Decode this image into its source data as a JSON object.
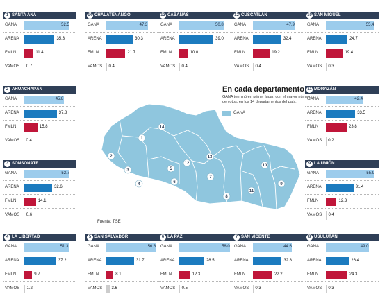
{
  "colors": {
    "GANA": "#9cccec",
    "ARENA": "#1c7bbf",
    "FMLN": "#c0163a",
    "VAMOS": "#cccccc",
    "header": "#2f3f57",
    "map": "#8fc6de"
  },
  "map": {
    "title": "En cada departamento",
    "subtitle": "GANA terminó en primer lugar, con el mayor número de votos, en los 14 departamentos del país.",
    "legend": "GANA",
    "source": "Fuente: TSE",
    "markers": [
      "1",
      "2",
      "3",
      "4",
      "5",
      "6",
      "7",
      "8",
      "9",
      "10",
      "11",
      "12",
      "13",
      "14"
    ]
  },
  "chart_data": [
    {
      "type": "bar",
      "number": "1",
      "title": "Santa Ana",
      "categories": [
        "GANA",
        "ARENA",
        "FMLN",
        "VAMOS"
      ],
      "values": [
        52.5,
        35.3,
        11.4,
        0.7
      ]
    },
    {
      "type": "bar",
      "number": "14",
      "title": "Chalatenango",
      "categories": [
        "GANA",
        "ARENA",
        "FMLN",
        "VAMOS"
      ],
      "values": [
        47.3,
        30.3,
        21.7,
        0.4
      ]
    },
    {
      "type": "bar",
      "number": "13",
      "title": "Cabañas",
      "categories": [
        "GANA",
        "ARENA",
        "FMLN",
        "VAMOS"
      ],
      "values": [
        50.8,
        39.0,
        10.0,
        0.4
      ]
    },
    {
      "type": "bar",
      "number": "12",
      "title": "Cuscatlán",
      "categories": [
        "GANA",
        "ARENA",
        "FMLN",
        "VAMOS"
      ],
      "values": [
        47.9,
        32.4,
        19.2,
        0.4
      ]
    },
    {
      "type": "bar",
      "number": "10",
      "title": "San Miguel",
      "categories": [
        "GANA",
        "ARENA",
        "FMLN",
        "VAMOS"
      ],
      "values": [
        55.4,
        24.7,
        19.4,
        0.3
      ]
    },
    {
      "type": "bar",
      "number": "2",
      "title": "Ahuachapán",
      "categories": [
        "GANA",
        "ARENA",
        "FMLN",
        "VAMOS"
      ],
      "values": [
        45.8,
        37.8,
        15.8,
        0.4
      ]
    },
    {
      "type": "bar",
      "number": "11",
      "title": "Morazán",
      "categories": [
        "GANA",
        "ARENA",
        "FMLN",
        "VAMOS"
      ],
      "values": [
        42.4,
        33.5,
        23.8,
        0.2
      ]
    },
    {
      "type": "bar",
      "number": "3",
      "title": "Sonsonate",
      "categories": [
        "GANA",
        "ARENA",
        "FMLN",
        "VAMOS"
      ],
      "values": [
        52.7,
        32.6,
        14.1,
        0.6
      ]
    },
    {
      "type": "bar",
      "number": "9",
      "title": "La Unión",
      "categories": [
        "GANA",
        "ARENA",
        "FMLN",
        "VAMOS"
      ],
      "values": [
        55.9,
        31.4,
        12.3,
        0.4
      ]
    },
    {
      "type": "bar",
      "number": "4",
      "title": "La Libertad",
      "categories": [
        "GANA",
        "ARENA",
        "FMLN",
        "VAMOS"
      ],
      "values": [
        51.3,
        37.2,
        9.7,
        1.2
      ]
    },
    {
      "type": "bar",
      "number": "5",
      "title": "San Salvador",
      "categories": [
        "GANA",
        "ARENA",
        "FMLN",
        "VAMOS"
      ],
      "values": [
        56.8,
        31.7,
        8.1,
        3.6
      ]
    },
    {
      "type": "bar",
      "number": "6",
      "title": "La Paz",
      "categories": [
        "GANA",
        "ARENA",
        "FMLN",
        "VAMOS"
      ],
      "values": [
        58.0,
        28.5,
        12.3,
        0.5
      ]
    },
    {
      "type": "bar",
      "number": "7",
      "title": "San Vicente",
      "categories": [
        "GANA",
        "ARENA",
        "FMLN",
        "VAMOS"
      ],
      "values": [
        44.6,
        32.8,
        22.2,
        0.3
      ]
    },
    {
      "type": "bar",
      "number": "8",
      "title": "Usulután",
      "categories": [
        "GANA",
        "ARENA",
        "FMLN",
        "VAMOS"
      ],
      "values": [
        49.0,
        26.4,
        24.3,
        0.3
      ]
    }
  ]
}
